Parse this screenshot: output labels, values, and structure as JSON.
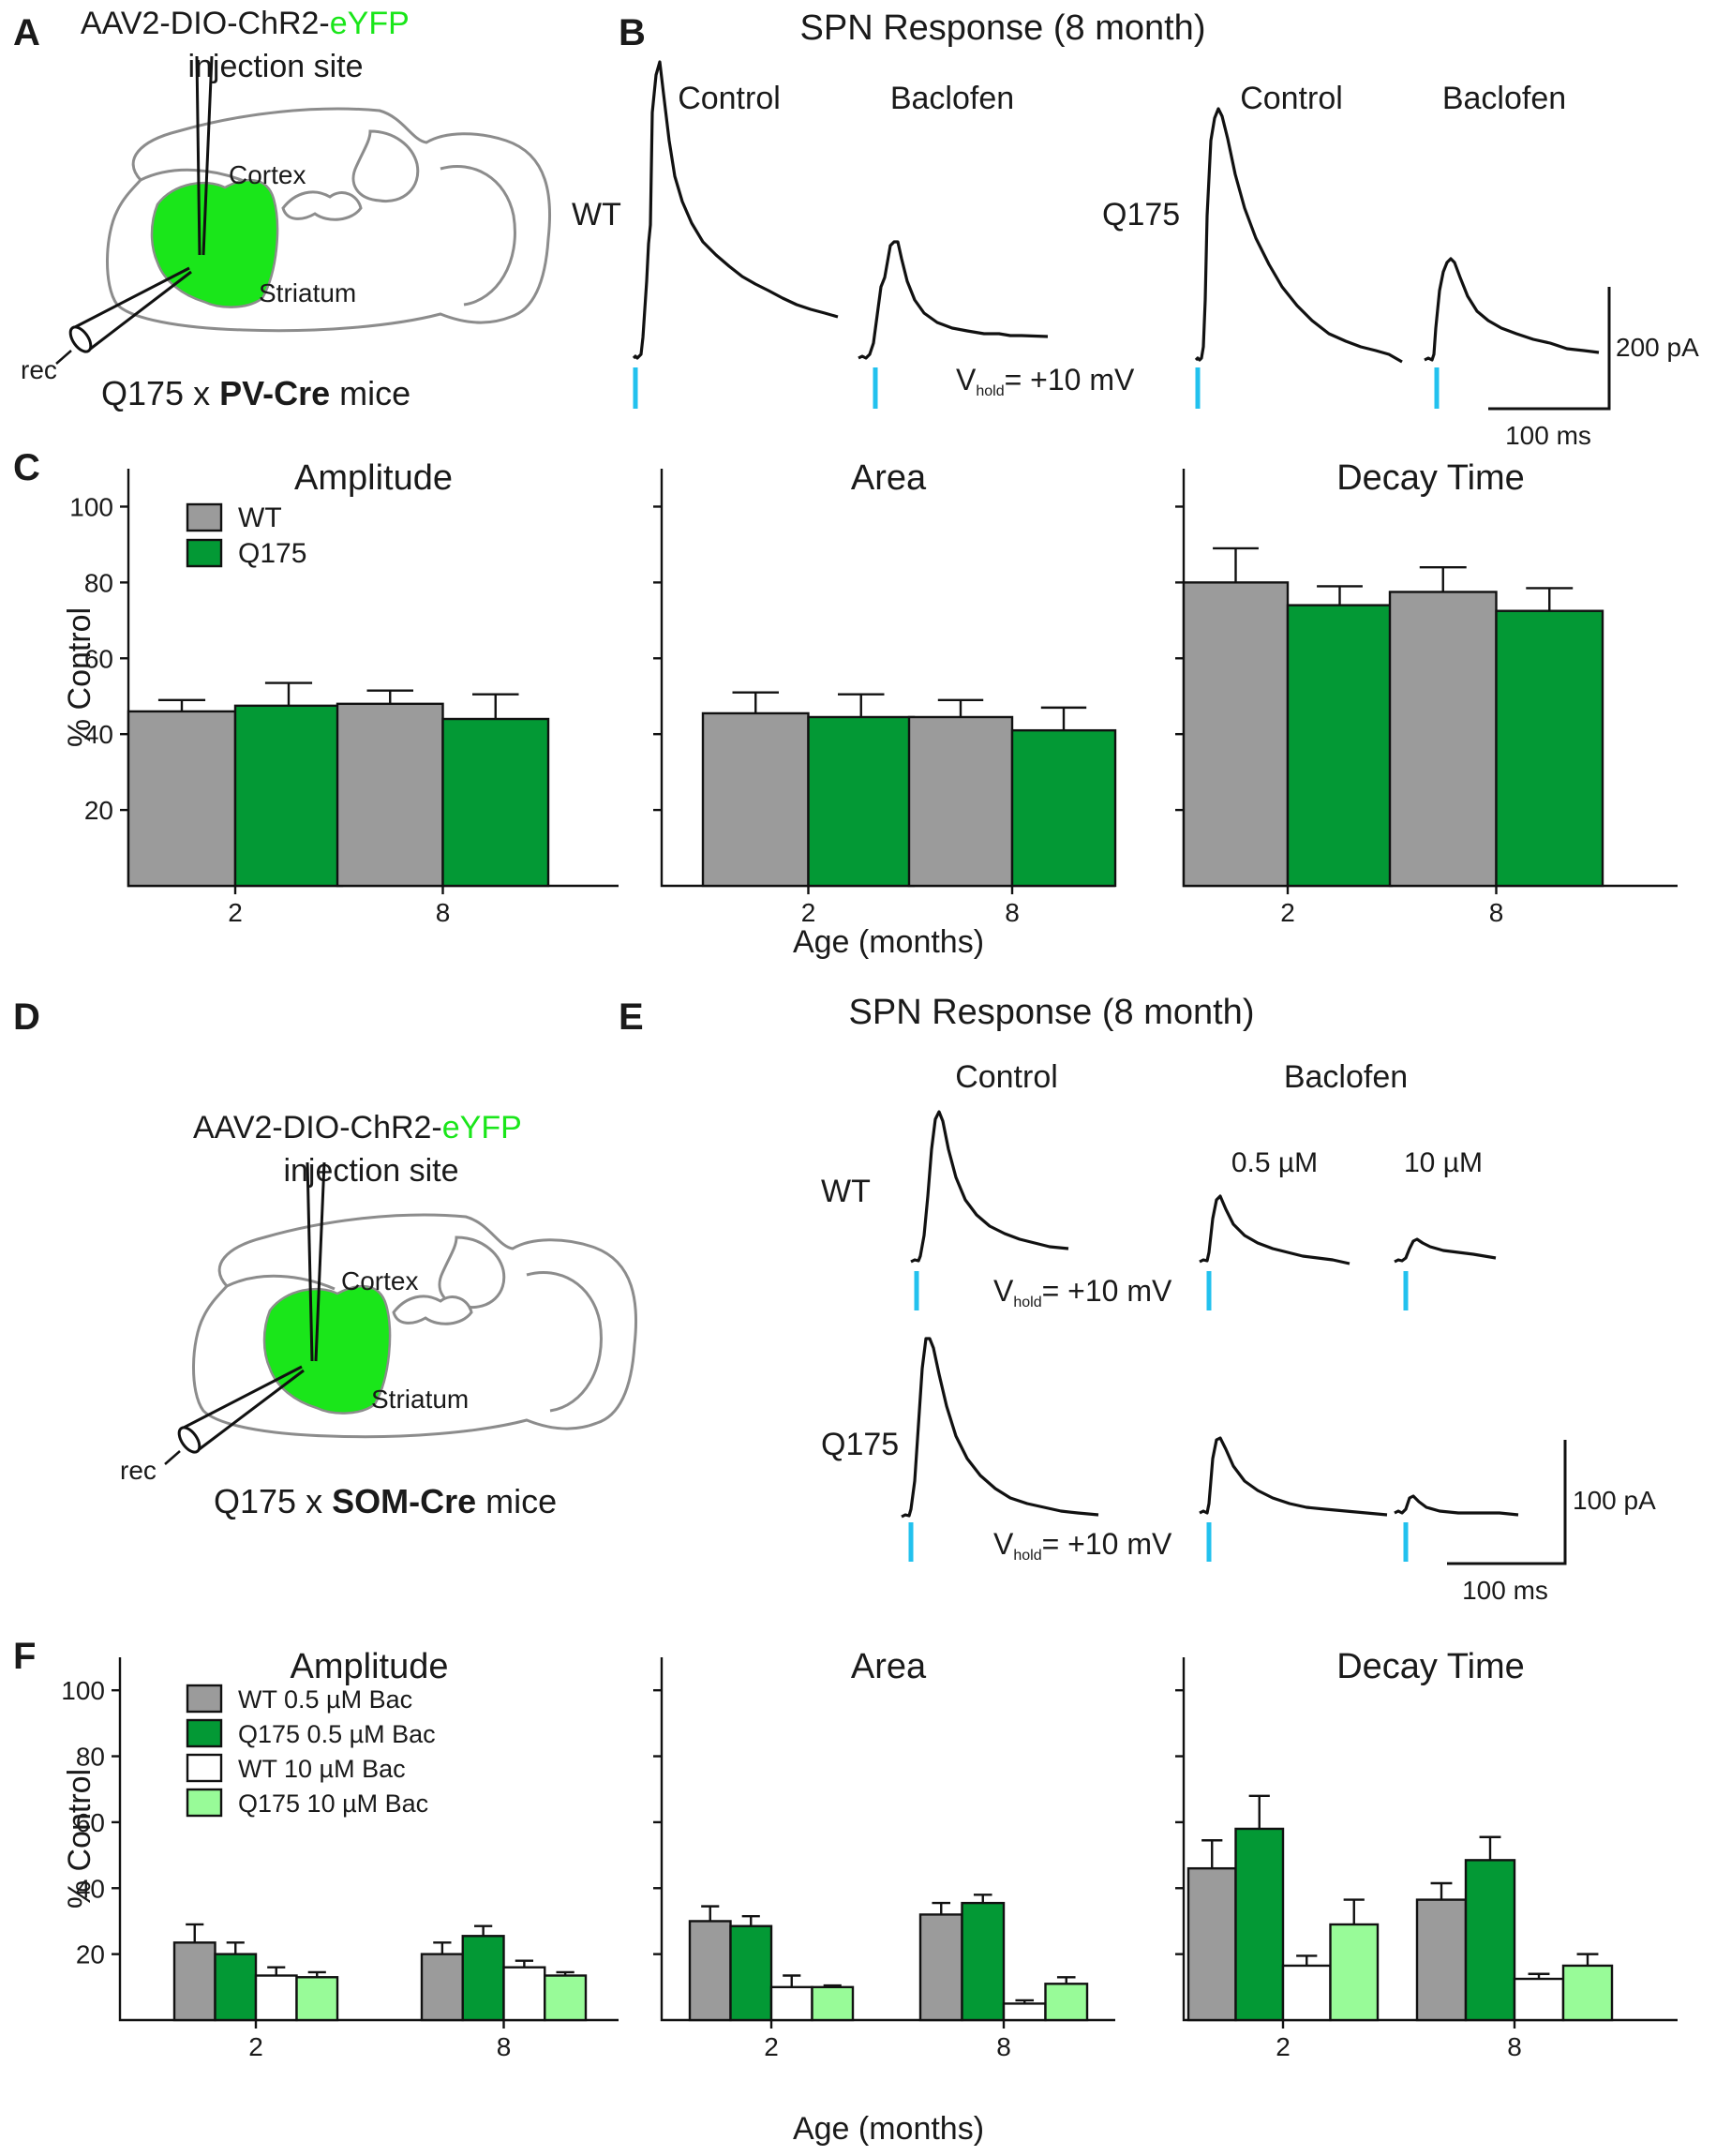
{
  "panel_labels": [
    "A",
    "B",
    "C",
    "D",
    "E",
    "F"
  ],
  "colors": {
    "wt": "#9b9b9b",
    "q175": "#039935",
    "wt10": "#ffffff",
    "q175_10": "#98fb98",
    "stim": "#22c1ee",
    "striatum": "#1ae61a",
    "eyfp": "#1ae61a"
  },
  "panel_a": {
    "virus_prefix": "AAV2-DIO-ChR2-",
    "virus_suffix": "eYFP",
    "injection": "injection site",
    "cortex": "Cortex",
    "striatum": "Striatum",
    "rec": "rec",
    "mouse_prefix": "Q175 x ",
    "mouse_bold": "PV-Cre",
    "mouse_suffix": " mice"
  },
  "panel_b": {
    "title": "SPN Response (8 month)",
    "control": "Control",
    "baclofen": "Baclofen",
    "wt": "WT",
    "q175": "Q175",
    "vhold_v": "V",
    "vhold_sub": "hold",
    "vhold_val": "= +10 mV",
    "scale_y": "200 pA",
    "scale_x": "100 ms"
  },
  "panel_d": {
    "virus_prefix": "AAV2-DIO-ChR2-",
    "virus_suffix": "eYFP",
    "injection": "injection site",
    "cortex": "Cortex",
    "striatum": "Striatum",
    "rec": "rec",
    "mouse_prefix": "Q175 x ",
    "mouse_bold": "SOM-Cre",
    "mouse_suffix": " mice"
  },
  "panel_e": {
    "title": "SPN Response (8 month)",
    "control": "Control",
    "baclofen": "Baclofen",
    "conc1": "0.5 µM",
    "conc2": "10 µM",
    "wt": "WT",
    "q175": "Q175",
    "vhold_v": "V",
    "vhold_sub": "hold",
    "vhold_val": "= +10 mV",
    "scale_y": "100 pA",
    "scale_x": "100 ms"
  },
  "chart_data": [
    {
      "panel": "C",
      "type": "bar",
      "ylabel": "% Control",
      "xlabel": "Age (months)",
      "ylim": [
        0,
        110
      ],
      "yticks": [
        20,
        40,
        60,
        80,
        100
      ],
      "categories": [
        "2",
        "8"
      ],
      "legend": [
        "WT",
        "Q175"
      ],
      "subplots": [
        {
          "title": "Amplitude",
          "series": [
            {
              "name": "WT",
              "values": [
                46,
                48
              ],
              "errors": [
                3,
                3.5
              ]
            },
            {
              "name": "Q175",
              "values": [
                47.5,
                44
              ],
              "errors": [
                6,
                6.5
              ]
            }
          ]
        },
        {
          "title": "Area",
          "series": [
            {
              "name": "WT",
              "values": [
                45.5,
                44.5
              ],
              "errors": [
                5.5,
                4.5
              ]
            },
            {
              "name": "Q175",
              "values": [
                44.5,
                41
              ],
              "errors": [
                6,
                6
              ]
            }
          ]
        },
        {
          "title": "Decay Time",
          "series": [
            {
              "name": "WT",
              "values": [
                80,
                77.5
              ],
              "errors": [
                9,
                6.5
              ]
            },
            {
              "name": "Q175",
              "values": [
                74,
                72.5
              ],
              "errors": [
                5,
                6
              ]
            }
          ]
        }
      ]
    },
    {
      "panel": "F",
      "type": "bar",
      "ylabel": "% Control",
      "xlabel": "Age (months)",
      "ylim": [
        0,
        110
      ],
      "yticks": [
        20,
        40,
        60,
        80,
        100
      ],
      "categories": [
        "2",
        "8"
      ],
      "legend": [
        "WT 0.5 µM Bac",
        "Q175 0.5 µM Bac",
        "WT 10 µM Bac",
        "Q175 10 µM Bac"
      ],
      "subplots": [
        {
          "title": "Amplitude",
          "series": [
            {
              "name": "WT 0.5 µM Bac",
              "values": [
                23.5,
                20
              ],
              "errors": [
                5.5,
                3.5
              ]
            },
            {
              "name": "Q175 0.5 µM Bac",
              "values": [
                20,
                25.5
              ],
              "errors": [
                3.5,
                3
              ]
            },
            {
              "name": "WT 10 µM Bac",
              "values": [
                13.5,
                16
              ],
              "errors": [
                2.5,
                2
              ]
            },
            {
              "name": "Q175 10 µM Bac",
              "values": [
                13,
                13.5
              ],
              "errors": [
                1.5,
                1
              ]
            }
          ]
        },
        {
          "title": "Area",
          "series": [
            {
              "name": "WT 0.5 µM Bac",
              "values": [
                30,
                32
              ],
              "errors": [
                4.5,
                3.5
              ]
            },
            {
              "name": "Q175 0.5 µM Bac",
              "values": [
                28.5,
                35.5
              ],
              "errors": [
                3,
                2.5
              ]
            },
            {
              "name": "WT 10 µM Bac",
              "values": [
                10,
                5
              ],
              "errors": [
                3.5,
                1
              ]
            },
            {
              "name": "Q175 10 µM Bac",
              "values": [
                10,
                11
              ],
              "errors": [
                0.5,
                2
              ]
            }
          ]
        },
        {
          "title": "Decay Time",
          "series": [
            {
              "name": "WT 0.5 µM Bac",
              "values": [
                46,
                36.5
              ],
              "errors": [
                8.5,
                5
              ]
            },
            {
              "name": "Q175 0.5 µM Bac",
              "values": [
                58,
                48.5
              ],
              "errors": [
                10,
                7
              ]
            },
            {
              "name": "WT 10 µM Bac",
              "values": [
                16.5,
                12.5
              ],
              "errors": [
                3,
                1.5
              ]
            },
            {
              "name": "Q175 10 µM Bac",
              "values": [
                29,
                16.5
              ],
              "errors": [
                7.5,
                3.5
              ]
            }
          ]
        }
      ]
    }
  ]
}
